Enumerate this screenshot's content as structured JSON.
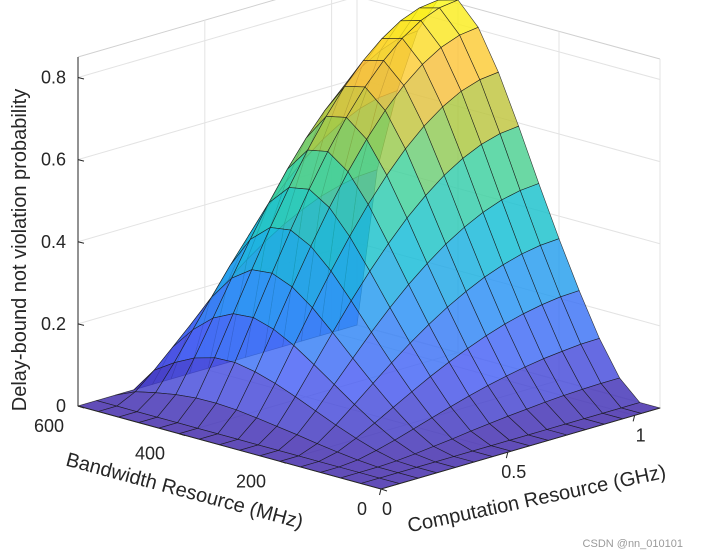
{
  "chart_data": {
    "type": "surface",
    "title": "",
    "xlabel": "Computation Resource (GHz)",
    "ylabel": "Bandwidth Resource (MHz)",
    "zlabel": "Delay-bound not violation probability",
    "xlim": [
      0,
      1.1
    ],
    "ylim": [
      0,
      600
    ],
    "zlim": [
      0,
      0.85
    ],
    "xticks": [
      0,
      0.5,
      1
    ],
    "xtick_labels": [
      "0",
      "0.5",
      "1"
    ],
    "yticks": [
      0,
      200,
      400,
      600
    ],
    "ytick_labels": [
      "0",
      "200",
      "400",
      "600"
    ],
    "zticks": [
      0,
      0.2,
      0.4,
      0.6,
      0.8
    ],
    "ztick_labels": [
      "0",
      "0.2",
      "0.4",
      "0.6",
      "0.8"
    ],
    "colormap": "parula",
    "grid": true,
    "x": [
      0,
      0.0733,
      0.1467,
      0.22,
      0.2933,
      0.3667,
      0.44,
      0.5133,
      0.5867,
      0.66,
      0.7333,
      0.8067,
      0.88,
      0.9533,
      1.0267,
      1.1
    ],
    "y": [
      0,
      40,
      80,
      120,
      160,
      200,
      240,
      280,
      320,
      360,
      400,
      440,
      480,
      520,
      560,
      600
    ],
    "z": [
      [
        0.0,
        0.0,
        0.0,
        0.0,
        0.0,
        0.0,
        0.0,
        0.0,
        0.0,
        0.0,
        0.0,
        0.0,
        0.0,
        0.0,
        0.0,
        0.0
      ],
      [
        0.0,
        0.0,
        0.0,
        0.0,
        0.0,
        0.0,
        0.0,
        0.0,
        0.0,
        0.0,
        0.0,
        0.0,
        0.0,
        0.0,
        0.0,
        0.0
      ],
      [
        0.0,
        0.0,
        0.0,
        0.002,
        0.006,
        0.011,
        0.016,
        0.022,
        0.027,
        0.032,
        0.036,
        0.04,
        0.043,
        0.045,
        0.046,
        0.046
      ],
      [
        0.0,
        0.0,
        0.004,
        0.014,
        0.026,
        0.04,
        0.054,
        0.068,
        0.081,
        0.093,
        0.103,
        0.112,
        0.119,
        0.124,
        0.128,
        0.129
      ],
      [
        0.0,
        0.0,
        0.01,
        0.03,
        0.054,
        0.079,
        0.104,
        0.128,
        0.15,
        0.17,
        0.188,
        0.203,
        0.215,
        0.224,
        0.23,
        0.232
      ],
      [
        0.0,
        0.0,
        0.017,
        0.049,
        0.086,
        0.124,
        0.161,
        0.196,
        0.228,
        0.257,
        0.282,
        0.304,
        0.321,
        0.334,
        0.342,
        0.345
      ],
      [
        0.0,
        0.0,
        0.025,
        0.07,
        0.121,
        0.172,
        0.222,
        0.269,
        0.312,
        0.35,
        0.384,
        0.412,
        0.435,
        0.452,
        0.462,
        0.466
      ],
      [
        0.0,
        0.0,
        0.032,
        0.091,
        0.156,
        0.221,
        0.285,
        0.344,
        0.398,
        0.447,
        0.489,
        0.525,
        0.553,
        0.574,
        0.587,
        0.592
      ],
      [
        0.0,
        0.0,
        0.039,
        0.11,
        0.189,
        0.268,
        0.344,
        0.415,
        0.48,
        0.538,
        0.589,
        0.631,
        0.665,
        0.69,
        0.705,
        0.71
      ],
      [
        0.0,
        0.0,
        0.045,
        0.125,
        0.215,
        0.305,
        0.391,
        0.472,
        0.546,
        0.612,
        0.669,
        0.717,
        0.755,
        0.783,
        0.8,
        0.806
      ],
      [
        0.0,
        0.0,
        0.048,
        0.134,
        0.23,
        0.325,
        0.417,
        0.503,
        0.582,
        0.652,
        0.713,
        0.764,
        0.805,
        0.835,
        0.853,
        0.859
      ],
      [
        0.0,
        0.0,
        0.047,
        0.132,
        0.226,
        0.32,
        0.41,
        0.494,
        0.572,
        0.641,
        0.701,
        0.751,
        0.791,
        0.821,
        0.839,
        0.845
      ],
      [
        0.0,
        0.0,
        0.042,
        0.118,
        0.202,
        0.286,
        0.367,
        0.443,
        0.512,
        0.574,
        0.628,
        0.673,
        0.709,
        0.735,
        0.752,
        0.757
      ],
      [
        0.0,
        0.0,
        0.033,
        0.093,
        0.16,
        0.226,
        0.29,
        0.35,
        0.405,
        0.454,
        0.497,
        0.532,
        0.56,
        0.581,
        0.594,
        0.598
      ],
      [
        0.0,
        0.0,
        0.022,
        0.061,
        0.104,
        0.148,
        0.19,
        0.229,
        0.265,
        0.297,
        0.325,
        0.348,
        0.367,
        0.38,
        0.389,
        0.392
      ],
      [
        0.0,
        0.0,
        0.0,
        0.0,
        0.0,
        0.0,
        0.0,
        0.0,
        0.0,
        0.0,
        0.0,
        0.0,
        0.0,
        0.0,
        0.0,
        0.0
      ]
    ]
  },
  "watermark": "CSDN @nn_010101"
}
